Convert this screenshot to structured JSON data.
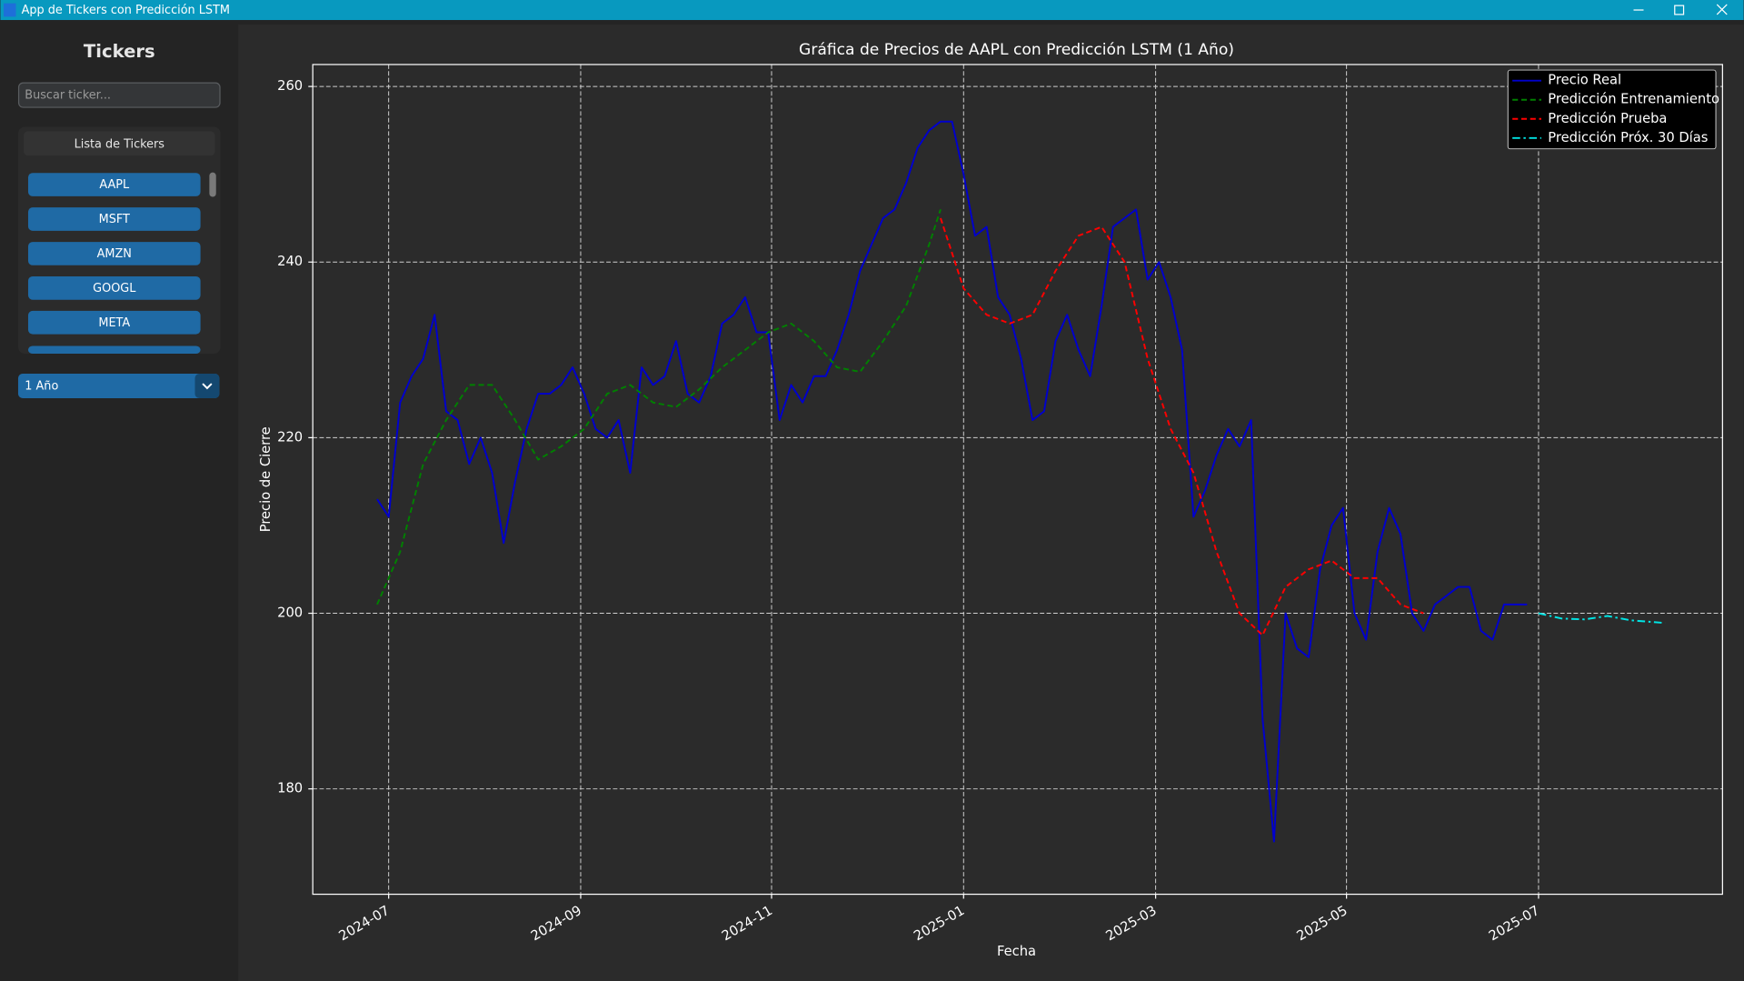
{
  "window": {
    "title": "App de Tickers con Predicción LSTM"
  },
  "sidebar": {
    "title": "Tickers",
    "search_placeholder": "Buscar ticker...",
    "list_title": "Lista de Tickers",
    "tickers": [
      "AAPL",
      "MSFT",
      "AMZN",
      "GOOGL",
      "META"
    ],
    "period": "1 Año"
  },
  "chart_data": {
    "type": "line",
    "title": "Gráfica de Precios de AAPL con Predicción LSTM (1 Año)",
    "x_label": "Fecha",
    "y_label": "Precio de Cierre",
    "xlim": [
      2024.434,
      2025.66
    ],
    "ylim": [
      168,
      262.5
    ],
    "xticks": [
      {
        "value": 2024.5,
        "label": "2024-07"
      },
      {
        "value": 2024.667,
        "label": "2024-09"
      },
      {
        "value": 2024.833,
        "label": "2024-11"
      },
      {
        "value": 2025.0,
        "label": "2025-01"
      },
      {
        "value": 2025.167,
        "label": "2025-03"
      },
      {
        "value": 2025.333,
        "label": "2025-05"
      },
      {
        "value": 2025.5,
        "label": "2025-07"
      }
    ],
    "yticks": [
      180,
      200,
      220,
      240,
      260
    ],
    "grid": true,
    "legend": "upper right",
    "series": [
      {
        "name": "Precio Real",
        "color": "#0000cd",
        "linestyle": "solid",
        "x": [
          2024.49,
          2024.5,
          2024.51,
          2024.52,
          2024.53,
          2024.54,
          2024.55,
          2024.56,
          2024.57,
          2024.58,
          2024.59,
          2024.6,
          2024.61,
          2024.62,
          2024.63,
          2024.64,
          2024.65,
          2024.66,
          2024.67,
          2024.68,
          2024.69,
          2024.7,
          2024.71,
          2024.72,
          2024.73,
          2024.74,
          2024.75,
          2024.76,
          2024.77,
          2024.78,
          2024.79,
          2024.8,
          2024.81,
          2024.82,
          2024.83,
          2024.84,
          2024.85,
          2024.86,
          2024.87,
          2024.88,
          2024.89,
          2024.9,
          2024.91,
          2024.92,
          2024.93,
          2024.94,
          2024.95,
          2024.96,
          2024.97,
          2024.98,
          2024.99,
          2025.0,
          2025.01,
          2025.02,
          2025.03,
          2025.04,
          2025.05,
          2025.06,
          2025.07,
          2025.08,
          2025.09,
          2025.1,
          2025.11,
          2025.12,
          2025.13,
          2025.14,
          2025.15,
          2025.16,
          2025.17,
          2025.18,
          2025.19,
          2025.2,
          2025.21,
          2025.22,
          2025.23,
          2025.24,
          2025.25,
          2025.26,
          2025.27,
          2025.28,
          2025.29,
          2025.3,
          2025.31,
          2025.32,
          2025.33,
          2025.34,
          2025.35,
          2025.36,
          2025.37,
          2025.38,
          2025.39,
          2025.4,
          2025.41,
          2025.42,
          2025.43,
          2025.44,
          2025.45,
          2025.46,
          2025.47,
          2025.48,
          2025.49
        ],
        "values": [
          213,
          211,
          224,
          227,
          229,
          234,
          223,
          222,
          217,
          220,
          216,
          208,
          215,
          221,
          225,
          225,
          226,
          228,
          225,
          221,
          220,
          222,
          216,
          228,
          226,
          227,
          231,
          225,
          224,
          227,
          233,
          234,
          236,
          232,
          232,
          222,
          226,
          224,
          227,
          227,
          230,
          234,
          239,
          242,
          245,
          246,
          249,
          253,
          255,
          256,
          256,
          250,
          243,
          244,
          236,
          234,
          229,
          222,
          223,
          231,
          234,
          230,
          227,
          235,
          244,
          245,
          246,
          238,
          240,
          236,
          230,
          211,
          214,
          218,
          221,
          219,
          222,
          188,
          174,
          200,
          196,
          195,
          205,
          210,
          212,
          200,
          197,
          207,
          212,
          209,
          200,
          198,
          201,
          202,
          203,
          203,
          198,
          197,
          201,
          201,
          201
        ]
      },
      {
        "name": "Predicción Entrenamiento",
        "color": "#008000",
        "linestyle": "dashed",
        "x": [
          2024.49,
          2024.51,
          2024.53,
          2024.55,
          2024.57,
          2024.59,
          2024.61,
          2024.63,
          2024.65,
          2024.67,
          2024.69,
          2024.71,
          2024.73,
          2024.75,
          2024.77,
          2024.79,
          2024.81,
          2024.83,
          2024.85,
          2024.87,
          2024.89,
          2024.91,
          2024.93,
          2024.95,
          2024.97,
          2024.98
        ],
        "values": [
          201,
          207,
          217,
          222,
          226,
          226,
          222,
          217.5,
          219,
          221,
          225,
          226,
          224,
          223.5,
          225.5,
          228,
          230,
          232,
          233,
          231,
          228,
          227.5,
          231,
          235,
          242,
          246
        ]
      },
      {
        "name": "Predicción Prueba",
        "color": "#ff0000",
        "linestyle": "dashed",
        "x": [
          2024.98,
          2025.0,
          2025.02,
          2025.04,
          2025.06,
          2025.08,
          2025.1,
          2025.12,
          2025.14,
          2025.16,
          2025.18,
          2025.2,
          2025.22,
          2025.24,
          2025.26,
          2025.28,
          2025.3,
          2025.32,
          2025.34,
          2025.36,
          2025.38,
          2025.4
        ],
        "values": [
          245,
          237,
          234,
          233,
          234,
          239,
          243,
          244,
          240,
          229,
          221,
          216,
          207,
          200,
          197.5,
          203,
          205,
          206,
          204,
          204,
          201,
          200
        ]
      },
      {
        "name": "Predicción Próx. 30 Días",
        "color": "#00e5e5",
        "linestyle": "dashdot",
        "x": [
          2025.5,
          2025.52,
          2025.54,
          2025.56,
          2025.58,
          2025.6,
          2025.61
        ],
        "values": [
          200,
          199.4,
          199.3,
          199.7,
          199.2,
          199.0,
          198.9
        ]
      }
    ]
  }
}
